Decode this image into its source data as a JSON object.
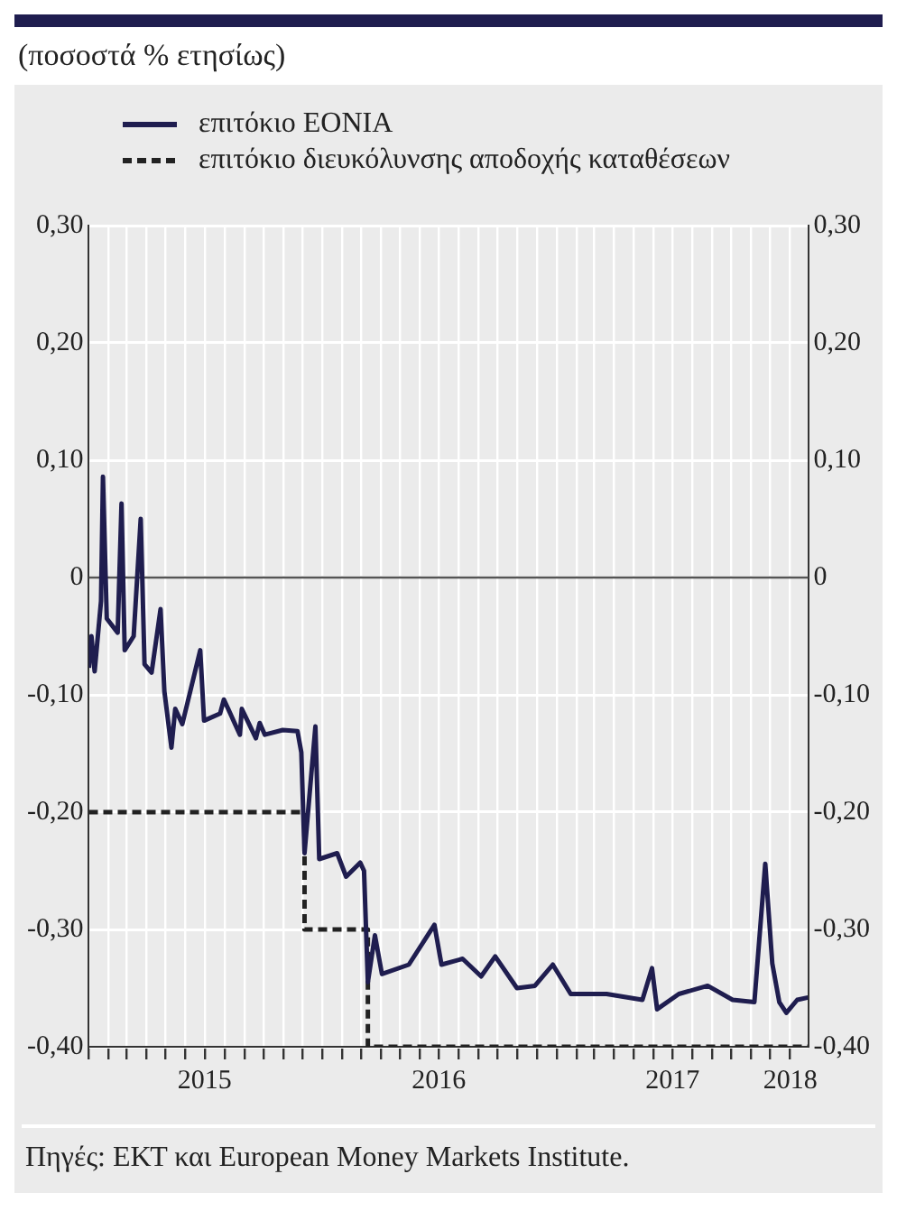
{
  "chart_data": {
    "type": "line",
    "title": "(ποσοστά % ετησίως)",
    "legend": "top",
    "grid": true,
    "marker": "none",
    "annotations": [
      "Πηγές: ΕΚΤ  και European Money Markets Institute."
    ],
    "xlim": [
      "2015-01-01",
      "2018-01-29"
    ],
    "xticks": [
      {
        "value": "2015-01-01",
        "label": null
      },
      {
        "value": "2015-02-01",
        "label": null
      },
      {
        "value": "2015-03-01",
        "label": null
      },
      {
        "value": "2015-04-01",
        "label": null
      },
      {
        "value": "2015-05-01",
        "label": null
      },
      {
        "value": "2015-06-01",
        "label": null
      },
      {
        "value": "2015-07-01",
        "label": "2015"
      },
      {
        "value": "2015-08-01",
        "label": null
      },
      {
        "value": "2015-09-01",
        "label": null
      },
      {
        "value": "2015-10-01",
        "label": null
      },
      {
        "value": "2015-11-01",
        "label": null
      },
      {
        "value": "2015-12-01",
        "label": null
      },
      {
        "value": "2016-01-01",
        "label": null
      },
      {
        "value": "2016-02-01",
        "label": null
      },
      {
        "value": "2016-03-01",
        "label": null
      },
      {
        "value": "2016-04-01",
        "label": null
      },
      {
        "value": "2016-05-01",
        "label": null
      },
      {
        "value": "2016-06-01",
        "label": null
      },
      {
        "value": "2016-07-01",
        "label": "2016"
      },
      {
        "value": "2016-08-01",
        "label": null
      },
      {
        "value": "2016-09-01",
        "label": null
      },
      {
        "value": "2016-10-01",
        "label": null
      },
      {
        "value": "2016-11-01",
        "label": null
      },
      {
        "value": "2016-12-01",
        "label": null
      },
      {
        "value": "2017-01-01",
        "label": null
      },
      {
        "value": "2017-02-01",
        "label": null
      },
      {
        "value": "2017-03-01",
        "label": null
      },
      {
        "value": "2017-04-01",
        "label": null
      },
      {
        "value": "2017-05-01",
        "label": null
      },
      {
        "value": "2017-06-01",
        "label": null
      },
      {
        "value": "2017-07-01",
        "label": "2017"
      },
      {
        "value": "2017-08-01",
        "label": null
      },
      {
        "value": "2017-09-01",
        "label": null
      },
      {
        "value": "2017-10-01",
        "label": null
      },
      {
        "value": "2017-11-01",
        "label": null
      },
      {
        "value": "2017-12-01",
        "label": null
      },
      {
        "value": "2018-01-01",
        "label": "2018"
      }
    ],
    "ylim": [
      -0.4,
      0.3
    ],
    "yticks": [
      {
        "value": -0.4,
        "label": "-0,40"
      },
      {
        "value": -0.3,
        "label": "-0,30"
      },
      {
        "value": -0.2,
        "label": "-0,20"
      },
      {
        "value": -0.1,
        "label": "-0,10"
      },
      0,
      {
        "value": 0.1,
        "label": "0,10"
      },
      {
        "value": 0.2,
        "label": "0,20"
      },
      {
        "value": 0.3,
        "label": "0,30"
      }
    ],
    "y2lim": [
      -0.4,
      0.3
    ],
    "y2ticks": [
      {
        "value": -0.4,
        "label": "-0,40"
      },
      {
        "value": -0.3,
        "label": "-0,30"
      },
      {
        "value": -0.2,
        "label": "-0,20"
      },
      {
        "value": -0.1,
        "label": "-0,10"
      },
      0,
      {
        "value": 0.1,
        "label": "0,10"
      },
      {
        "value": 0.2,
        "label": "0,20"
      },
      {
        "value": 0.3,
        "label": "0,30"
      }
    ],
    "ref_lines": [
      {
        "axis": "y",
        "value": 0,
        "color": "#555555"
      }
    ],
    "series": [
      {
        "name": "επιτόκιο EONIA",
        "type": "line",
        "color": "#1f1d4f",
        "line_style": "solid",
        "x": [
          "2015-01-01",
          "2015-01-05",
          "2015-01-10",
          "2015-01-20",
          "2015-01-23",
          "2015-01-29",
          "2015-02-15",
          "2015-02-21",
          "2015-02-26",
          "2015-03-12",
          "2015-03-23",
          "2015-03-29",
          "2015-04-09",
          "2015-04-23",
          "2015-04-29",
          "2015-05-10",
          "2015-05-16",
          "2015-05-27",
          "2015-06-24",
          "2015-06-30",
          "2015-07-25",
          "2015-07-31",
          "2015-08-25",
          "2015-08-28",
          "2015-09-19",
          "2015-09-25",
          "2015-10-03",
          "2015-10-31",
          "2015-11-23",
          "2015-11-29",
          "2015-12-04",
          "2015-12-21",
          "2015-12-27",
          "2016-01-24",
          "2016-02-07",
          "2016-02-29",
          "2016-03-06",
          "2016-03-12",
          "2016-03-23",
          "2016-04-03",
          "2016-05-15",
          "2016-06-24",
          "2016-07-05",
          "2016-08-07",
          "2016-09-05",
          "2016-09-27",
          "2016-10-31",
          "2016-11-28",
          "2016-12-26",
          "2017-01-23",
          "2017-03-20",
          "2017-05-15",
          "2017-05-30",
          "2017-06-07",
          "2017-07-11",
          "2017-08-25",
          "2017-10-03",
          "2017-11-06",
          "2017-11-23",
          "2017-12-04",
          "2017-12-15",
          "2017-12-26",
          "2018-01-12",
          "2018-01-29"
        ],
        "values": [
          -0.077,
          -0.05,
          -0.08,
          -0.02,
          0.086,
          -0.035,
          -0.047,
          0.063,
          -0.062,
          -0.05,
          0.05,
          -0.074,
          -0.081,
          -0.027,
          -0.097,
          -0.145,
          -0.112,
          -0.125,
          -0.062,
          -0.122,
          -0.116,
          -0.104,
          -0.134,
          -0.112,
          -0.137,
          -0.124,
          -0.134,
          -0.13,
          -0.131,
          -0.149,
          -0.235,
          -0.127,
          -0.24,
          -0.235,
          -0.255,
          -0.243,
          -0.25,
          -0.345,
          -0.305,
          -0.338,
          -0.33,
          -0.296,
          -0.33,
          -0.325,
          -0.34,
          -0.323,
          -0.35,
          -0.348,
          -0.33,
          -0.355,
          -0.355,
          -0.36,
          -0.333,
          -0.368,
          -0.355,
          -0.348,
          -0.36,
          -0.362,
          -0.244,
          -0.329,
          -0.362,
          -0.371,
          -0.36,
          -0.358
        ]
      },
      {
        "name": "επιτόκιο διευκόλυνσης αποδοχής καταθέσεων",
        "type": "step",
        "color": "#222222",
        "line_style": "dashed",
        "x": [
          "2015-01-01",
          "2015-12-04",
          "2016-03-12",
          "2018-01-29"
        ],
        "values": [
          -0.2,
          -0.3,
          -0.4,
          -0.4
        ]
      }
    ]
  }
}
